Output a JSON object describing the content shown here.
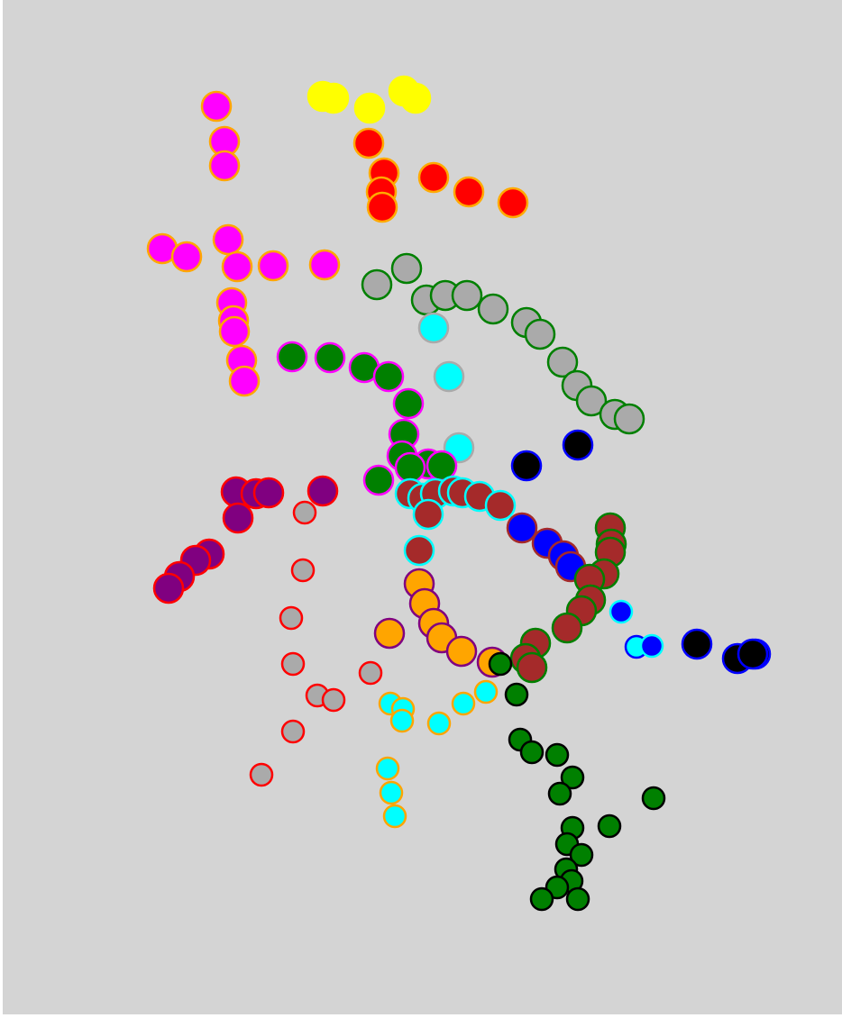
{
  "scene": {
    "description_free": true,
    "background": "#d4d4d4"
  },
  "clusters": [
    {
      "name": "yellow-group",
      "fill": "#ffff00",
      "stroke": "#ffff00",
      "dots": [
        [
          358,
          107
        ],
        [
          370,
          109
        ],
        [
          410,
          120
        ],
        [
          448,
          101
        ],
        [
          461,
          109
        ]
      ]
    },
    {
      "name": "red-group",
      "fill": "#ff0000",
      "stroke": "#ffaa00",
      "dots": [
        [
          409,
          159
        ],
        [
          426,
          192
        ],
        [
          423,
          213
        ],
        [
          424,
          230
        ],
        [
          481,
          197
        ],
        [
          520,
          213
        ],
        [
          569,
          225
        ]
      ]
    },
    {
      "name": "magenta-group",
      "fill": "#ff00ff",
      "stroke": "#ffa500",
      "dots": [
        [
          240,
          118
        ],
        [
          249,
          157
        ],
        [
          249,
          184
        ],
        [
          180,
          276
        ],
        [
          207,
          285
        ],
        [
          253,
          266
        ],
        [
          263,
          296
        ],
        [
          303,
          295
        ],
        [
          360,
          294
        ],
        [
          257,
          336
        ],
        [
          259,
          356
        ],
        [
          260,
          368
        ],
        [
          268,
          400
        ],
        [
          271,
          423
        ]
      ]
    },
    {
      "name": "grey-arc",
      "fill": "#aaaaaa",
      "stroke": "#008000",
      "dots": [
        [
          418,
          316
        ],
        [
          451,
          298
        ],
        [
          473,
          333
        ],
        [
          494,
          328
        ],
        [
          518,
          328
        ],
        [
          547,
          343
        ],
        [
          584,
          358
        ],
        [
          599,
          371
        ],
        [
          624,
          402
        ],
        [
          640,
          428
        ],
        [
          656,
          445
        ],
        [
          682,
          460
        ],
        [
          698,
          465
        ]
      ]
    },
    {
      "name": "cyan-grey-group",
      "fill": "#00ffff",
      "stroke": "#aaaaaa",
      "dots": [
        [
          481,
          364
        ],
        [
          498,
          418
        ],
        [
          509,
          497
        ]
      ]
    },
    {
      "name": "green-magenta-arc",
      "fill": "#008000",
      "stroke": "#ff00ff",
      "dots": [
        [
          324,
          396
        ],
        [
          366,
          397
        ],
        [
          404,
          408
        ],
        [
          431,
          418
        ],
        [
          453,
          448
        ],
        [
          448,
          482
        ],
        [
          446,
          506
        ],
        [
          420,
          533
        ],
        [
          475,
          515
        ],
        [
          490,
          517
        ],
        [
          455,
          519
        ]
      ]
    },
    {
      "name": "black-blue-group",
      "fill": "#000000",
      "stroke": "#0000ff",
      "dots": [
        [
          584,
          517
        ],
        [
          641,
          494
        ],
        [
          773,
          715
        ],
        [
          818,
          731
        ],
        [
          838,
          726
        ],
        [
          835,
          726
        ]
      ]
    },
    {
      "name": "brown-cyan-group",
      "fill": "#a52a2a",
      "stroke": "#00ffff",
      "dots": [
        [
          455,
          548
        ],
        [
          469,
          553
        ],
        [
          483,
          548
        ],
        [
          503,
          545
        ],
        [
          513,
          547
        ],
        [
          532,
          551
        ],
        [
          555,
          561
        ],
        [
          475,
          571
        ],
        [
          465,
          611
        ]
      ]
    },
    {
      "name": "blue-brown-group",
      "fill": "#0000ff",
      "stroke": "#a52a2a",
      "dots": [
        [
          579,
          586
        ],
        [
          607,
          603
        ],
        [
          625,
          617
        ],
        [
          633,
          629
        ]
      ]
    },
    {
      "name": "brown-green-group",
      "fill": "#a52a2a",
      "stroke": "#008000",
      "dots": [
        [
          677,
          586
        ],
        [
          678,
          604
        ],
        [
          677,
          613
        ],
        [
          670,
          637
        ],
        [
          654,
          643
        ],
        [
          655,
          666
        ],
        [
          645,
          678
        ],
        [
          629,
          697
        ],
        [
          594,
          714
        ],
        [
          583,
          731
        ],
        [
          590,
          741
        ]
      ]
    },
    {
      "name": "purple-red-group",
      "fill": "#800080",
      "stroke": "#ff0000",
      "dots": [
        [
          262,
          546
        ],
        [
          284,
          548
        ],
        [
          298,
          547
        ],
        [
          358,
          545
        ],
        [
          264,
          575
        ],
        [
          232,
          615
        ],
        [
          217,
          622
        ],
        [
          199,
          640
        ],
        [
          187,
          653
        ]
      ]
    },
    {
      "name": "grey-red-group",
      "fill": "#aaaaaa",
      "stroke": "#ff0000",
      "dots": [
        [
          338,
          569
        ],
        [
          336,
          633
        ],
        [
          323,
          686
        ],
        [
          325,
          737
        ],
        [
          352,
          772
        ],
        [
          370,
          777
        ],
        [
          411,
          747
        ],
        [
          325,
          812
        ],
        [
          290,
          860
        ]
      ]
    },
    {
      "name": "orange-purple-arc",
      "fill": "#ffa500",
      "stroke": "#800080",
      "dots": [
        [
          465,
          648
        ],
        [
          471,
          670
        ],
        [
          481,
          692
        ],
        [
          490,
          708
        ],
        [
          512,
          723
        ],
        [
          432,
          703
        ],
        [
          546,
          735
        ]
      ]
    },
    {
      "name": "cyan-blue-group",
      "fill": "#00ffff",
      "stroke": "#0000ff",
      "dots": [
        [
          706,
          718
        ]
      ]
    },
    {
      "name": "blue-cyan-group",
      "fill": "#0000ff",
      "stroke": "#00ffff",
      "dots": [
        [
          689,
          679
        ],
        [
          723,
          717
        ]
      ]
    },
    {
      "name": "cyan-orange-group",
      "fill": "#00ffff",
      "stroke": "#ffa500",
      "dots": [
        [
          433,
          781
        ],
        [
          447,
          787
        ],
        [
          446,
          800
        ],
        [
          487,
          803
        ],
        [
          514,
          781
        ],
        [
          539,
          768
        ],
        [
          430,
          853
        ],
        [
          434,
          880
        ],
        [
          438,
          906
        ]
      ]
    },
    {
      "name": "green-black-group",
      "fill": "#008000",
      "stroke": "#000000",
      "dots": [
        [
          555,
          737
        ],
        [
          573,
          771
        ],
        [
          577,
          821
        ],
        [
          590,
          835
        ],
        [
          618,
          838
        ],
        [
          635,
          863
        ],
        [
          621,
          881
        ],
        [
          725,
          886
        ],
        [
          676,
          917
        ],
        [
          635,
          919
        ],
        [
          629,
          937
        ],
        [
          645,
          949
        ],
        [
          628,
          965
        ],
        [
          634,
          978
        ],
        [
          618,
          985
        ],
        [
          601,
          998
        ],
        [
          641,
          998
        ]
      ]
    }
  ],
  "dot_radius_large": 16,
  "dot_radius_small": 12
}
